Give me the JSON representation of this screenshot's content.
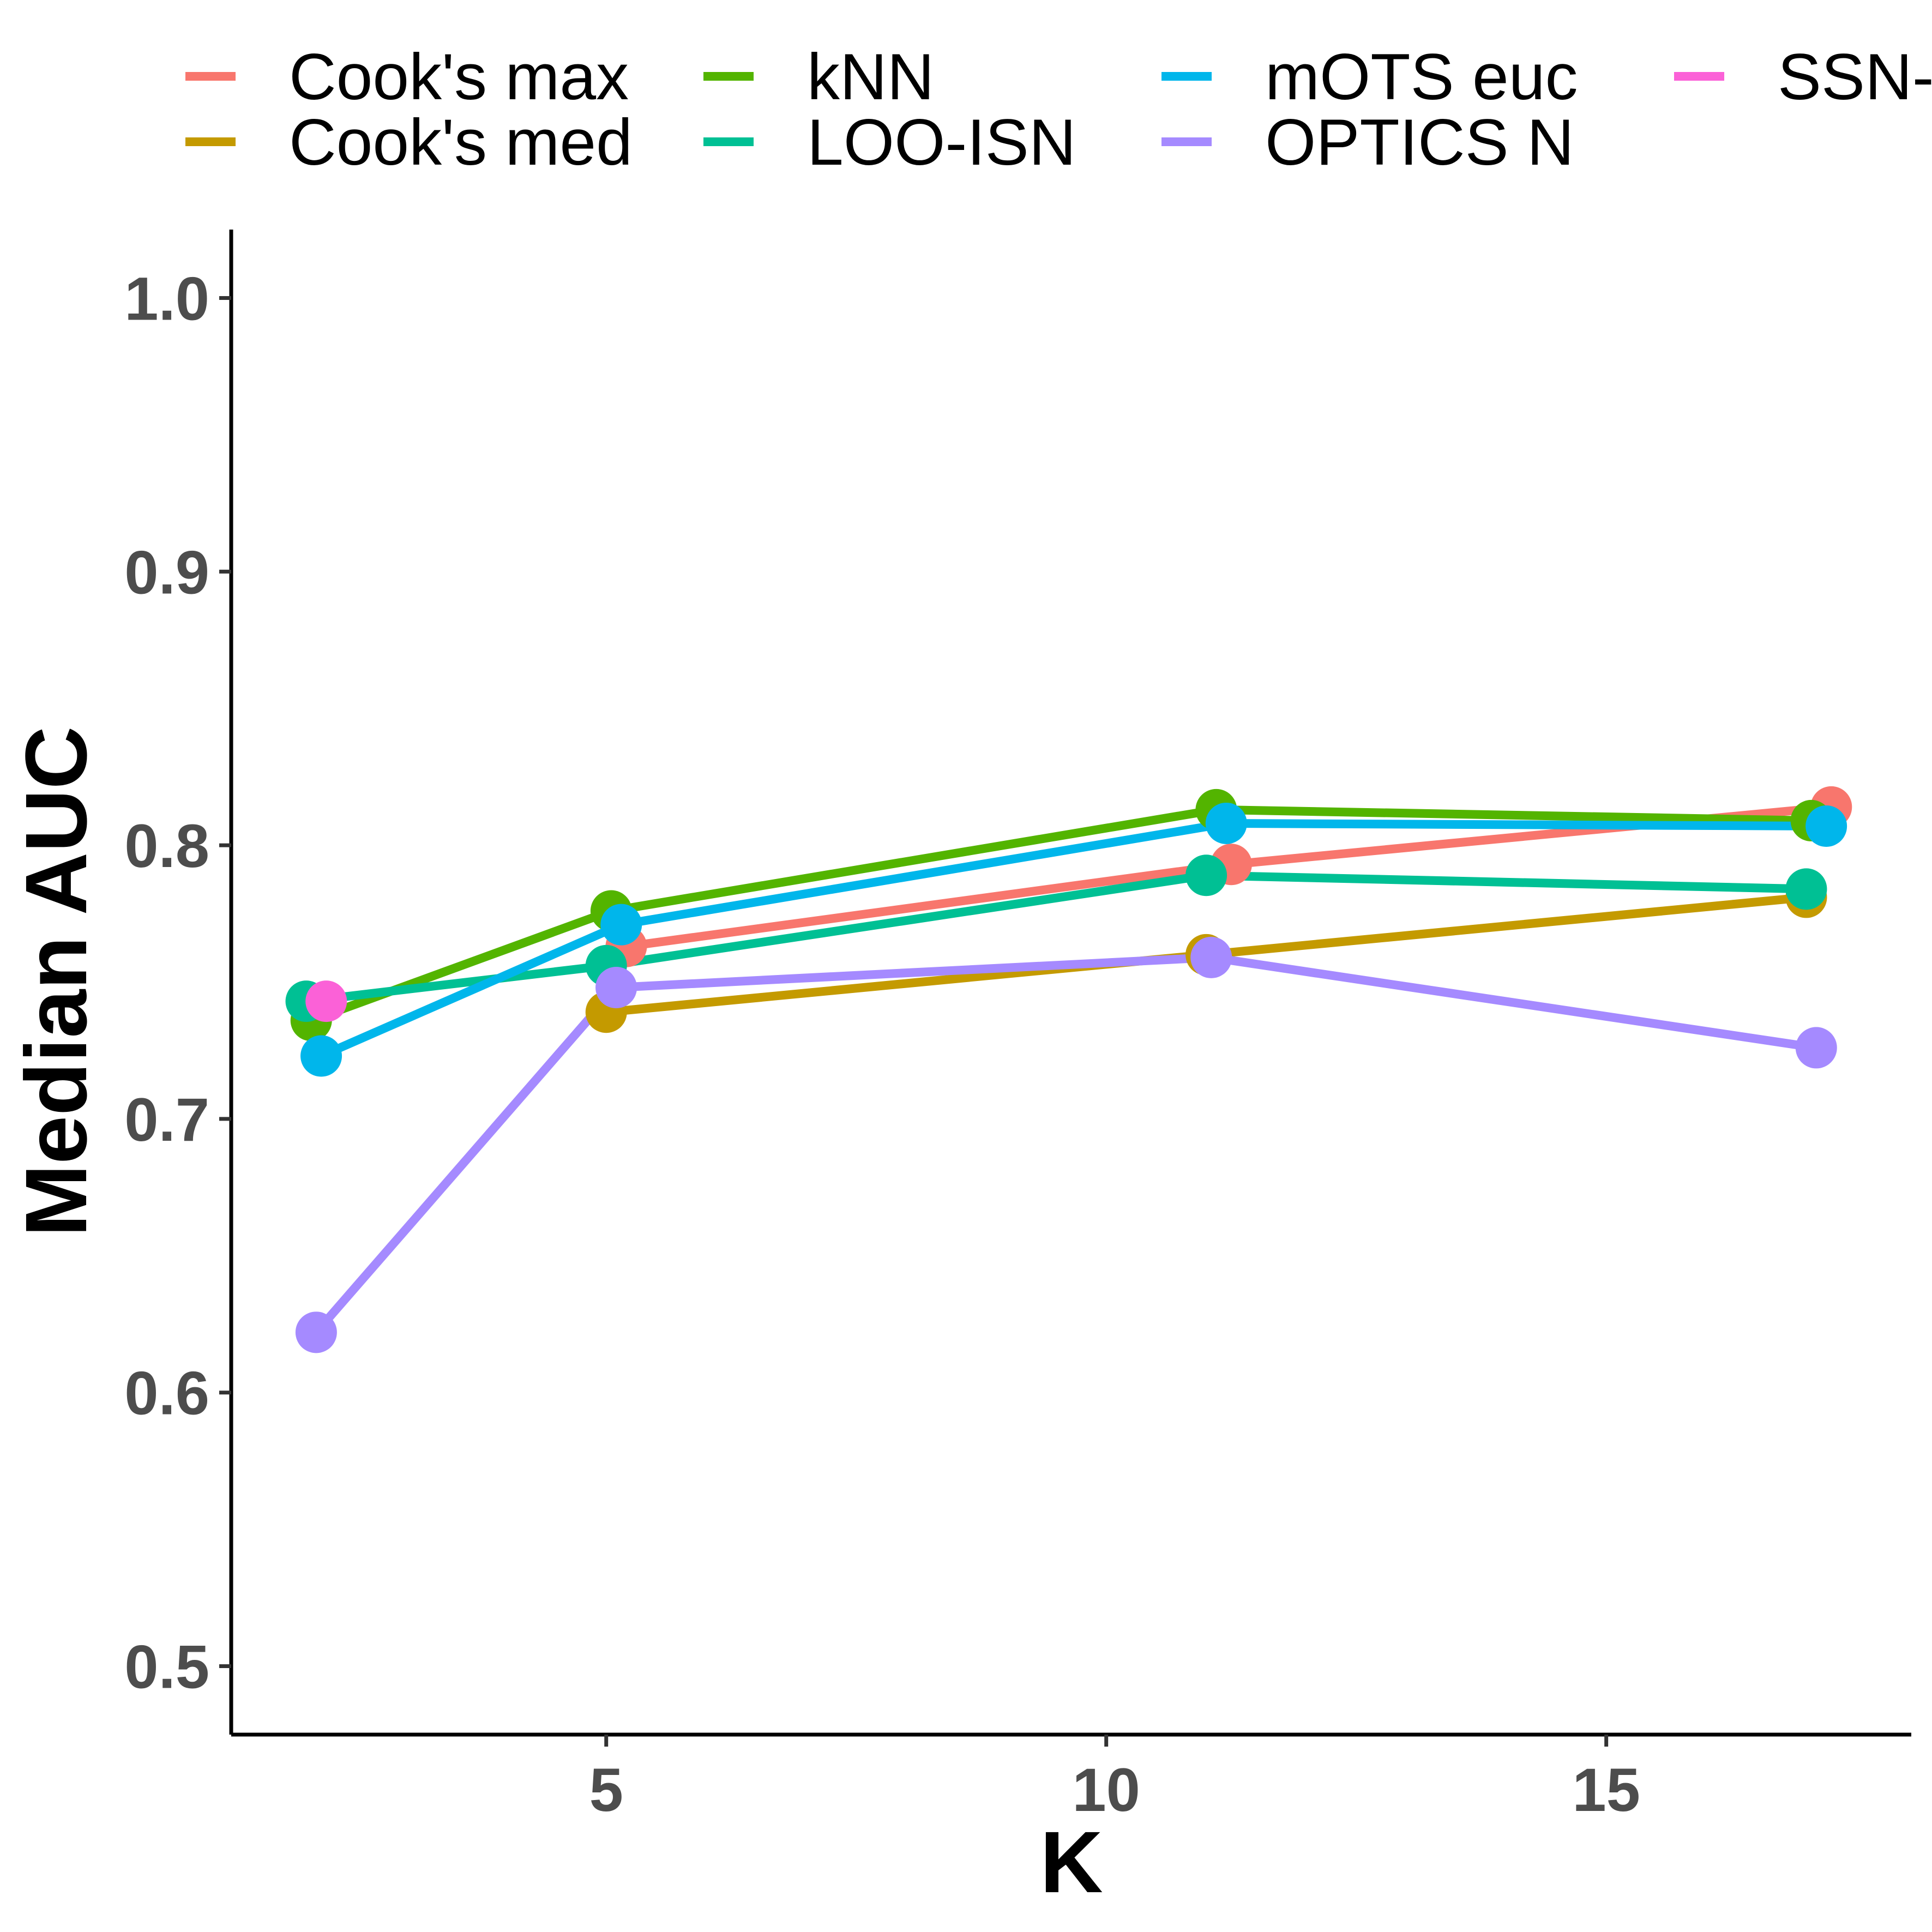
{
  "chart_data": {
    "type": "line",
    "title": "",
    "xlabel": "K",
    "ylabel": "Median AUC",
    "xlim": [
      1.25,
      18.05
    ],
    "ylim": [
      0.475,
      1.025
    ],
    "x_ticks": [
      5,
      10,
      15
    ],
    "y_ticks": [
      0.5,
      0.6,
      0.7,
      0.8,
      0.9,
      1.0
    ],
    "x_tick_labels": [
      "5",
      "10",
      "15"
    ],
    "y_tick_labels": [
      "0.5",
      "0.6",
      "0.7",
      "0.8",
      "0.9",
      "1.0"
    ],
    "grid": false,
    "legend_position": "top",
    "series": [
      {
        "name": "Cook's max",
        "color": "#F8766D",
        "x": [
          5.2,
          11.25,
          17.25
        ],
        "y": [
          0.763,
          0.793,
          0.814
        ]
      },
      {
        "name": "Cook's med",
        "color": "#C49A00",
        "x": [
          5.0,
          11.0,
          17.0
        ],
        "y": [
          0.739,
          0.76,
          0.781
        ]
      },
      {
        "name": "kNN",
        "color": "#53B400",
        "x": [
          2.05,
          5.05,
          11.1,
          17.05
        ],
        "y": [
          0.736,
          0.776,
          0.813,
          0.809
        ]
      },
      {
        "name": "LOO-ISN",
        "color": "#00C094",
        "x": [
          2.0,
          5.0,
          11.0,
          17.0
        ],
        "y": [
          0.743,
          0.756,
          0.789,
          0.784
        ]
      },
      {
        "name": "mOTS euc",
        "color": "#00B6EB",
        "x": [
          2.15,
          5.15,
          11.2,
          17.2
        ],
        "y": [
          0.723,
          0.771,
          0.808,
          0.807
        ]
      },
      {
        "name": "OPTICS N",
        "color": "#A58AFF",
        "x": [
          2.1,
          5.1,
          11.05,
          17.1
        ],
        "y": [
          0.622,
          0.748,
          0.759,
          0.726
        ]
      },
      {
        "name": "SSN-",
        "color": "#FB61D7",
        "x": [
          2.2
        ],
        "y": [
          0.743
        ]
      }
    ]
  },
  "legend": {
    "labels": [
      "Cook's max",
      "Cook's med",
      "kNN",
      "LOO-ISN",
      "mOTS euc",
      "OPTICS N",
      "SSN-"
    ]
  }
}
